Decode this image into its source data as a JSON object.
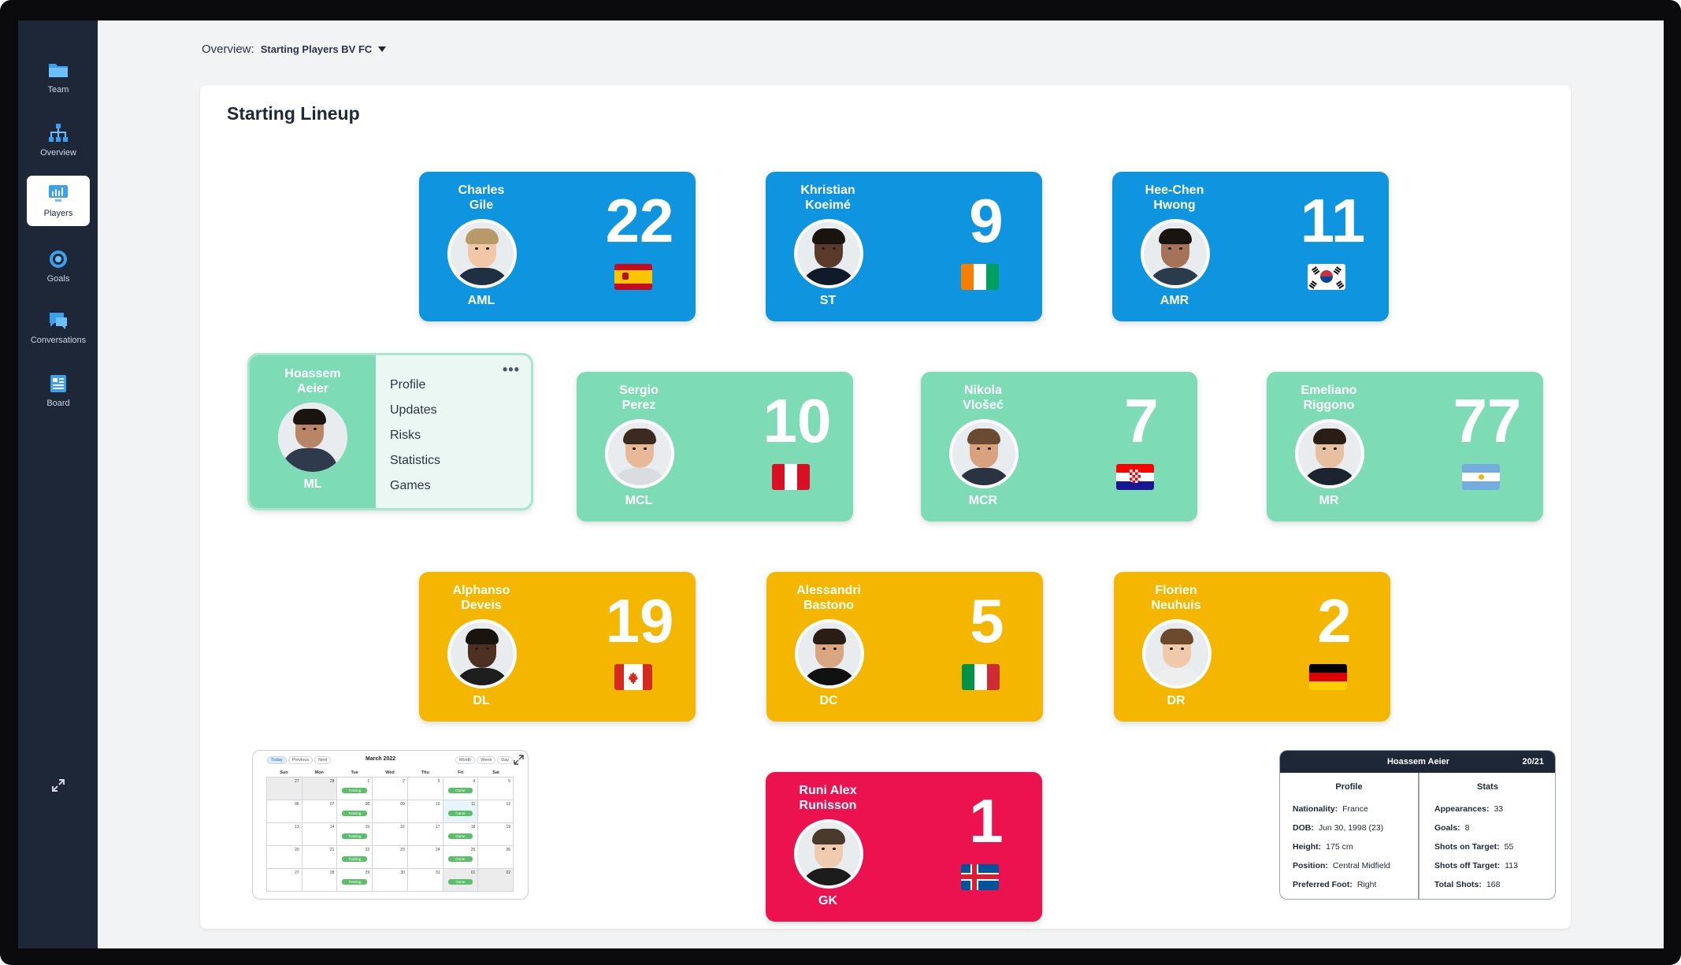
{
  "sidebar": {
    "items": [
      {
        "label": "Team",
        "icon": "folder-icon"
      },
      {
        "label": "Overview",
        "icon": "hierarchy-icon"
      },
      {
        "label": "Players",
        "icon": "monitor-chart-icon",
        "active": true
      },
      {
        "label": "Goals",
        "icon": "target-icon"
      },
      {
        "label": "Conversations",
        "icon": "chat-icon"
      },
      {
        "label": "Board",
        "icon": "board-icon"
      }
    ]
  },
  "header": {
    "label": "Overview:",
    "selected": "Starting Players BV FC"
  },
  "panel": {
    "title": "Starting Lineup"
  },
  "players": [
    {
      "name": "Charles\nGile",
      "number": "22",
      "position": "AML",
      "flag": "spain",
      "color": "blue",
      "hair": "#b89a6a",
      "skin": "#f0c8a8",
      "shirt": "#1f3042"
    },
    {
      "name": "Khristian\nKoeimé",
      "number": "9",
      "position": "ST",
      "flag": "ivory-coast",
      "color": "blue",
      "hair": "#1a1410",
      "skin": "#5a3a2a",
      "shirt": "#101a2a"
    },
    {
      "name": "Hee-Chen\nHwong",
      "number": "11",
      "position": "AMR",
      "flag": "south-korea",
      "color": "blue",
      "hair": "#1a1410",
      "skin": "#a4735a",
      "shirt": "#2a3b4c"
    },
    {
      "name": "Sergio\nPerez",
      "number": "10",
      "position": "MCL",
      "flag": "peru",
      "color": "green",
      "hair": "#3a2a20",
      "skin": "#e8b898",
      "shirt": "#d9dde2"
    },
    {
      "name": "Nikola\nVlošeć",
      "number": "7",
      "position": "MCR",
      "flag": "croatia",
      "color": "green",
      "hair": "#6a4a30",
      "skin": "#d8a27e",
      "shirt": "#2a3440"
    },
    {
      "name": "Emeliano\nRiggono",
      "number": "77",
      "position": "MR",
      "flag": "argentina",
      "color": "green",
      "hair": "#2a1d16",
      "skin": "#e6c0a0",
      "shirt": "#1c2430"
    },
    {
      "name": "Alphanso\nDeveis",
      "number": "19",
      "position": "DL",
      "flag": "canada",
      "color": "yellow",
      "hair": "#1a1410",
      "skin": "#4d3022",
      "shirt": "#1e1e1e"
    },
    {
      "name": "Alessandri\nBastono",
      "number": "5",
      "position": "DC",
      "flag": "italy",
      "color": "yellow",
      "hair": "#2a1d16",
      "skin": "#d8a680",
      "shirt": "#111"
    },
    {
      "name": "Florien\nNeuhuis",
      "number": "2",
      "position": "DR",
      "flag": "germany",
      "color": "yellow",
      "hair": "#6e4a2c",
      "skin": "#f0c8aa",
      "shirt": "#eeeeee"
    },
    {
      "name": "Runi Alex\nRunisson",
      "number": "1",
      "position": "GK",
      "flag": "iceland",
      "color": "red",
      "hair": "#4a3a2c",
      "skin": "#f0cbb0",
      "shirt": "#1c1c1c"
    }
  ],
  "menu_player": {
    "name": "Hoassem\nAeier",
    "position": "ML",
    "menu": [
      "Profile",
      "Updates",
      "Risks",
      "Statistics",
      "Games"
    ],
    "more": "•••",
    "hair": "#1a1410",
    "skin": "#b98567",
    "shirt": "#2f3b4c"
  },
  "calendar": {
    "buttons": [
      "Today",
      "Previous",
      "Next"
    ],
    "title": "March 2022",
    "views": [
      "Month",
      "Week",
      "Day"
    ],
    "days": [
      "Sun",
      "Mon",
      "Tue",
      "Wed",
      "Thu",
      "Fri",
      "Sat"
    ],
    "weeks": [
      [
        {
          "d": "27",
          "out": true
        },
        {
          "d": "28",
          "out": true
        },
        {
          "d": "1",
          "ev": "Training"
        },
        {
          "d": "2"
        },
        {
          "d": "3"
        },
        {
          "d": "4",
          "ev": "Game"
        },
        {
          "d": "5"
        }
      ],
      [
        {
          "d": "06"
        },
        {
          "d": "07"
        },
        {
          "d": "08",
          "ev": "Training"
        },
        {
          "d": "09"
        },
        {
          "d": "10"
        },
        {
          "d": "11",
          "ev": "Game",
          "today": true
        },
        {
          "d": "12"
        }
      ],
      [
        {
          "d": "13"
        },
        {
          "d": "14"
        },
        {
          "d": "15",
          "ev": "Training"
        },
        {
          "d": "16"
        },
        {
          "d": "17"
        },
        {
          "d": "18",
          "ev": "Game"
        },
        {
          "d": "19"
        }
      ],
      [
        {
          "d": "20"
        },
        {
          "d": "21"
        },
        {
          "d": "22",
          "ev": "Training"
        },
        {
          "d": "23"
        },
        {
          "d": "24"
        },
        {
          "d": "25",
          "ev": "Game"
        },
        {
          "d": "26"
        }
      ],
      [
        {
          "d": "27"
        },
        {
          "d": "28"
        },
        {
          "d": "29",
          "ev": "Training"
        },
        {
          "d": "30"
        },
        {
          "d": "31"
        },
        {
          "d": "01",
          "ev": "Game",
          "out": true
        },
        {
          "d": "02",
          "out": true
        }
      ]
    ]
  },
  "stats_card": {
    "name": "Hoassem Aeier",
    "season": "20/21",
    "profile_title": "Profile",
    "stats_title": "Stats",
    "profile": [
      {
        "k": "Nationality:",
        "v": "France"
      },
      {
        "k": "DOB:",
        "v": "Jun 30, 1998 (23)"
      },
      {
        "k": "Height:",
        "v": "175 cm"
      },
      {
        "k": "Position:",
        "v": "Central Midfield"
      },
      {
        "k": "Preferred Foot:",
        "v": "Right"
      }
    ],
    "stats": [
      {
        "k": "Appearances:",
        "v": "33"
      },
      {
        "k": "Goals:",
        "v": "8"
      },
      {
        "k": "Shots on Target:",
        "v": "55"
      },
      {
        "k": "Shots off Target:",
        "v": "113"
      },
      {
        "k": "Total Shots:",
        "v": "168"
      }
    ]
  }
}
